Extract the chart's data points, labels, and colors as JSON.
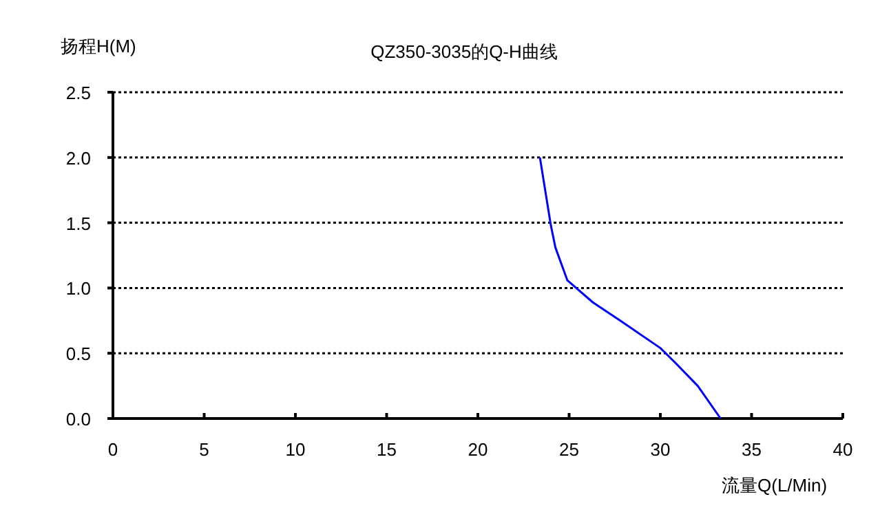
{
  "chart_data": {
    "type": "line",
    "title": "QZ350-3035的Q-H曲线",
    "xlabel": "流量Q(L/Min)",
    "ylabel": "扬程H(M)",
    "x": [
      23.4,
      24.0,
      24.25,
      24.9,
      26.3,
      27.8,
      30.0,
      30.8,
      32.05,
      33.3
    ],
    "series": [
      {
        "color": "#0000ff",
        "values": [
          2.0,
          1.48,
          1.31,
          1.06,
          0.89,
          0.75,
          0.54,
          0.43,
          0.25,
          0.0
        ]
      }
    ],
    "xlim": [
      0,
      40
    ],
    "ylim": [
      0,
      2.5
    ],
    "xticks": [
      0,
      5,
      10,
      15,
      20,
      25,
      30,
      35,
      40
    ],
    "yticks": [
      {
        "value": 0,
        "label": "0.0"
      },
      {
        "value": 0.5,
        "label": "0.5"
      },
      {
        "value": 1,
        "label": "1.0"
      },
      {
        "value": 1.5,
        "label": "1.5"
      },
      {
        "value": 2,
        "label": "2.0"
      },
      {
        "value": 2.5,
        "label": "2.5"
      }
    ],
    "grid": "y",
    "marker": "none",
    "line_style": "solid"
  }
}
